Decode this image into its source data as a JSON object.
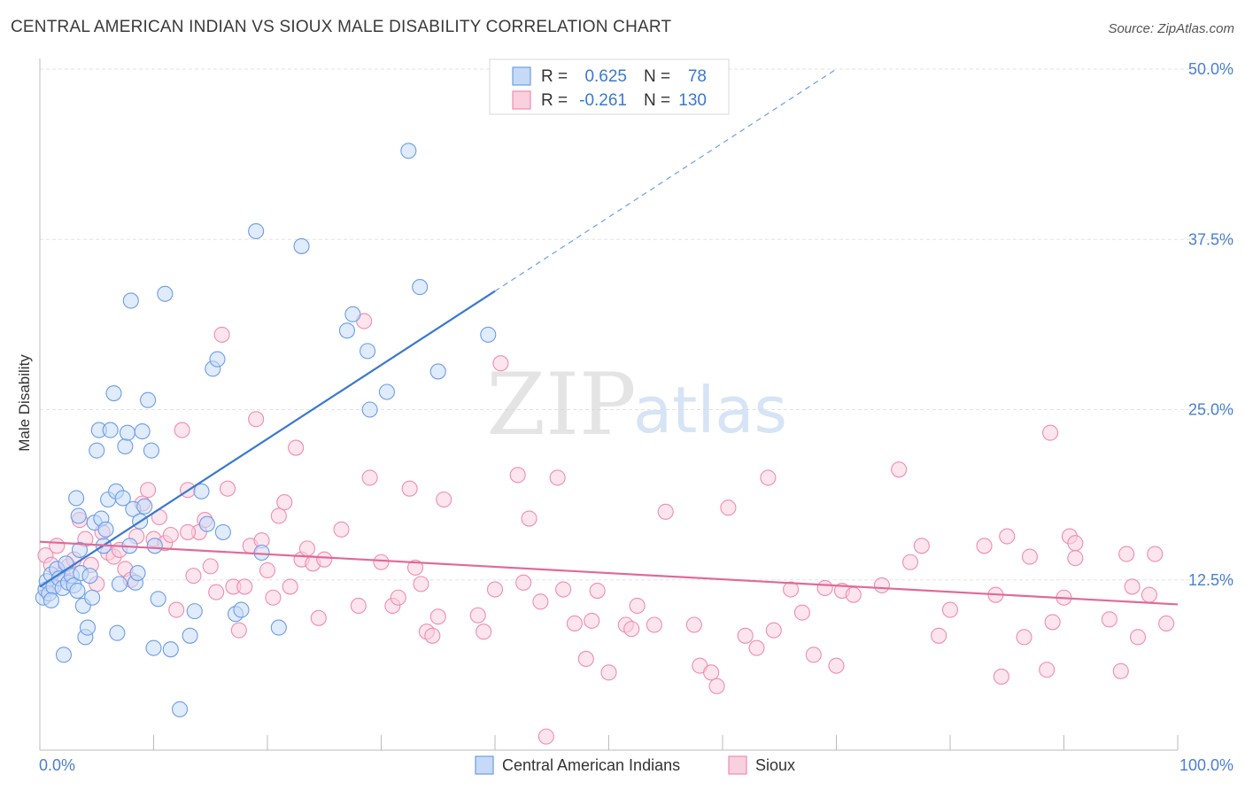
{
  "header": {
    "title": "CENTRAL AMERICAN INDIAN VS SIOUX MALE DISABILITY CORRELATION CHART",
    "source": "Source: ZipAtlas.com"
  },
  "watermark": {
    "zip": "ZIP",
    "atlas": "atlas"
  },
  "legend_top": {
    "rows": [
      {
        "r_label": "R =",
        "r_value": "0.625",
        "n_label": "N =",
        "n_value": "78",
        "color": "#6b9de8"
      },
      {
        "r_label": "R =",
        "r_value": "-0.261",
        "n_label": "N =",
        "n_value": "130",
        "color": "#f08cb0"
      }
    ]
  },
  "legend_bottom": {
    "items": [
      {
        "label": "Central American Indians",
        "color": "#6b9de8"
      },
      {
        "label": "Sioux",
        "color": "#f08cb0"
      }
    ]
  },
  "colors": {
    "blue": "#3a78d0",
    "pink": "#e06a98",
    "blue_fill": "#c6daf7",
    "pink_fill": "#f9d0de",
    "tick_text": "#4a7fd0"
  },
  "chart_data": {
    "type": "scatter",
    "title": "CENTRAL AMERICAN INDIAN VS SIOUX MALE DISABILITY CORRELATION CHART",
    "xlabel": "",
    "ylabel": "Male Disability",
    "xlim": [
      0,
      100
    ],
    "ylim": [
      0,
      50
    ],
    "x_tick_labels": [
      "0.0%",
      "100.0%"
    ],
    "y_ticks": [
      12.5,
      25.0,
      37.5,
      50.0
    ],
    "y_tick_labels": [
      "12.5%",
      "25.0%",
      "37.5%",
      "50.0%"
    ],
    "grid": true,
    "legend_position": "top-center",
    "series": [
      {
        "name": "Central American Indians",
        "color": "#6b9de8",
        "trend": {
          "x": [
            0,
            40
          ],
          "y": [
            12.0,
            33.7
          ],
          "dashed_to": [
            70,
            50.0
          ]
        },
        "points": [
          [
            0.3,
            11.2
          ],
          [
            0.5,
            11.8
          ],
          [
            0.6,
            12.4
          ],
          [
            0.8,
            11.5
          ],
          [
            1.0,
            12.9
          ],
          [
            1.2,
            12.0
          ],
          [
            1.5,
            13.3
          ],
          [
            1.7,
            12.6
          ],
          [
            2.0,
            11.9
          ],
          [
            2.3,
            13.7
          ],
          [
            2.5,
            12.3
          ],
          [
            2.8,
            12.8
          ],
          [
            3.0,
            12.1
          ],
          [
            3.3,
            11.7
          ],
          [
            3.5,
            14.7
          ],
          [
            3.2,
            18.5
          ],
          [
            3.4,
            17.2
          ],
          [
            3.6,
            13.0
          ],
          [
            3.8,
            10.6
          ],
          [
            4.0,
            8.3
          ],
          [
            4.2,
            9.0
          ],
          [
            4.4,
            12.8
          ],
          [
            4.6,
            11.2
          ],
          [
            4.8,
            16.7
          ],
          [
            5.0,
            22.0
          ],
          [
            5.2,
            23.5
          ],
          [
            5.4,
            17.0
          ],
          [
            5.6,
            15.0
          ],
          [
            5.8,
            16.2
          ],
          [
            6.0,
            18.4
          ],
          [
            6.2,
            23.5
          ],
          [
            6.5,
            26.2
          ],
          [
            6.7,
            19.0
          ],
          [
            7.0,
            12.2
          ],
          [
            7.3,
            18.5
          ],
          [
            7.5,
            22.3
          ],
          [
            7.7,
            23.3
          ],
          [
            7.9,
            15.0
          ],
          [
            8.0,
            33.0
          ],
          [
            8.2,
            17.7
          ],
          [
            8.4,
            12.3
          ],
          [
            8.6,
            13.0
          ],
          [
            8.8,
            16.8
          ],
          [
            9.0,
            23.4
          ],
          [
            9.2,
            17.9
          ],
          [
            9.5,
            25.7
          ],
          [
            9.8,
            22.0
          ],
          [
            10.1,
            15.0
          ],
          [
            10.4,
            11.1
          ],
          [
            11.0,
            33.5
          ],
          [
            10.0,
            7.5
          ],
          [
            11.5,
            7.4
          ],
          [
            12.3,
            3.0
          ],
          [
            13.2,
            8.4
          ],
          [
            13.6,
            10.2
          ],
          [
            14.2,
            19.0
          ],
          [
            14.7,
            16.6
          ],
          [
            15.2,
            28.0
          ],
          [
            15.6,
            28.7
          ],
          [
            16.1,
            16.0
          ],
          [
            17.2,
            10.0
          ],
          [
            17.7,
            10.3
          ],
          [
            19.0,
            38.1
          ],
          [
            23.0,
            37.0
          ],
          [
            27.0,
            30.8
          ],
          [
            27.5,
            32.0
          ],
          [
            28.8,
            29.3
          ],
          [
            29.0,
            25.0
          ],
          [
            30.5,
            26.3
          ],
          [
            32.4,
            44.0
          ],
          [
            33.4,
            34.0
          ],
          [
            35.0,
            27.8
          ],
          [
            39.4,
            30.5
          ],
          [
            19.5,
            14.5
          ],
          [
            21.0,
            9.0
          ],
          [
            2.1,
            7.0
          ],
          [
            6.8,
            8.6
          ],
          [
            1.0,
            11.0
          ]
        ]
      },
      {
        "name": "Sioux",
        "color": "#f08cb0",
        "trend": {
          "x": [
            0,
            100
          ],
          "y": [
            15.3,
            10.7
          ]
        },
        "points": [
          [
            0.5,
            14.3
          ],
          [
            1.0,
            13.6
          ],
          [
            1.5,
            15.0
          ],
          [
            2.0,
            12.9
          ],
          [
            2.5,
            13.5
          ],
          [
            3.0,
            14.0
          ],
          [
            3.5,
            16.9
          ],
          [
            4.0,
            15.5
          ],
          [
            4.5,
            13.6
          ],
          [
            5.0,
            12.2
          ],
          [
            5.5,
            16.0
          ],
          [
            6.0,
            14.5
          ],
          [
            6.5,
            14.2
          ],
          [
            7.0,
            14.7
          ],
          [
            7.5,
            13.3
          ],
          [
            8.0,
            12.5
          ],
          [
            8.5,
            15.7
          ],
          [
            9.0,
            18.1
          ],
          [
            9.5,
            19.1
          ],
          [
            10.0,
            15.5
          ],
          [
            10.5,
            17.1
          ],
          [
            11.0,
            15.2
          ],
          [
            11.5,
            15.8
          ],
          [
            12.0,
            10.3
          ],
          [
            12.5,
            23.5
          ],
          [
            13.0,
            19.1
          ],
          [
            13.5,
            12.8
          ],
          [
            14.0,
            16.0
          ],
          [
            14.5,
            16.9
          ],
          [
            15.0,
            13.5
          ],
          [
            15.5,
            11.6
          ],
          [
            16.0,
            30.5
          ],
          [
            16.5,
            19.2
          ],
          [
            17.0,
            12.0
          ],
          [
            17.5,
            8.8
          ],
          [
            18.0,
            12.0
          ],
          [
            18.5,
            15.0
          ],
          [
            19.0,
            24.3
          ],
          [
            19.5,
            15.4
          ],
          [
            20.0,
            13.2
          ],
          [
            20.5,
            11.2
          ],
          [
            21.0,
            17.2
          ],
          [
            21.5,
            18.2
          ],
          [
            22.0,
            12.0
          ],
          [
            22.5,
            22.2
          ],
          [
            23.0,
            14.0
          ],
          [
            23.5,
            14.8
          ],
          [
            24.0,
            13.7
          ],
          [
            24.5,
            9.7
          ],
          [
            25.0,
            14.0
          ],
          [
            26.5,
            16.2
          ],
          [
            28.0,
            10.6
          ],
          [
            28.5,
            31.5
          ],
          [
            29.0,
            20.0
          ],
          [
            30.0,
            13.8
          ],
          [
            31.0,
            10.6
          ],
          [
            31.5,
            11.2
          ],
          [
            32.5,
            19.2
          ],
          [
            33.0,
            13.4
          ],
          [
            33.5,
            12.2
          ],
          [
            34.0,
            8.7
          ],
          [
            34.5,
            8.4
          ],
          [
            35.0,
            9.8
          ],
          [
            35.5,
            18.4
          ],
          [
            38.5,
            9.9
          ],
          [
            39.0,
            8.7
          ],
          [
            40.0,
            11.8
          ],
          [
            40.5,
            28.4
          ],
          [
            42.0,
            20.2
          ],
          [
            42.5,
            12.3
          ],
          [
            43.0,
            17.0
          ],
          [
            44.0,
            10.9
          ],
          [
            44.5,
            1.0
          ],
          [
            45.5,
            20.0
          ],
          [
            46.0,
            11.8
          ],
          [
            47.0,
            9.3
          ],
          [
            48.0,
            6.7
          ],
          [
            48.5,
            9.5
          ],
          [
            49.0,
            11.7
          ],
          [
            50.0,
            5.7
          ],
          [
            51.5,
            9.2
          ],
          [
            52.0,
            8.9
          ],
          [
            52.5,
            10.6
          ],
          [
            54.0,
            9.2
          ],
          [
            55.0,
            17.5
          ],
          [
            57.5,
            9.2
          ],
          [
            58.0,
            6.2
          ],
          [
            59.0,
            5.7
          ],
          [
            59.5,
            4.7
          ],
          [
            60.5,
            17.8
          ],
          [
            62.0,
            8.4
          ],
          [
            63.0,
            7.5
          ],
          [
            64.0,
            20.0
          ],
          [
            64.5,
            8.8
          ],
          [
            66.0,
            11.8
          ],
          [
            67.0,
            10.1
          ],
          [
            68.0,
            7.0
          ],
          [
            69.0,
            11.9
          ],
          [
            70.0,
            6.2
          ],
          [
            70.5,
            11.7
          ],
          [
            71.5,
            11.4
          ],
          [
            74.0,
            12.1
          ],
          [
            75.5,
            20.6
          ],
          [
            76.5,
            13.8
          ],
          [
            77.5,
            15.0
          ],
          [
            79.0,
            8.4
          ],
          [
            80.0,
            10.3
          ],
          [
            83.0,
            15.0
          ],
          [
            84.0,
            11.4
          ],
          [
            84.5,
            5.4
          ],
          [
            85.0,
            15.7
          ],
          [
            86.5,
            8.3
          ],
          [
            87.0,
            14.2
          ],
          [
            88.5,
            5.9
          ],
          [
            88.8,
            23.3
          ],
          [
            89.0,
            9.4
          ],
          [
            90.0,
            11.2
          ],
          [
            90.5,
            15.7
          ],
          [
            91.0,
            15.2
          ],
          [
            91.0,
            14.1
          ],
          [
            94.0,
            9.6
          ],
          [
            95.0,
            5.8
          ],
          [
            95.5,
            14.4
          ],
          [
            96.0,
            12.0
          ],
          [
            96.5,
            8.3
          ],
          [
            97.5,
            11.4
          ],
          [
            98.0,
            14.4
          ],
          [
            99.0,
            9.3
          ],
          [
            13.0,
            16.0
          ],
          [
            1.0,
            12.0
          ]
        ]
      }
    ]
  }
}
